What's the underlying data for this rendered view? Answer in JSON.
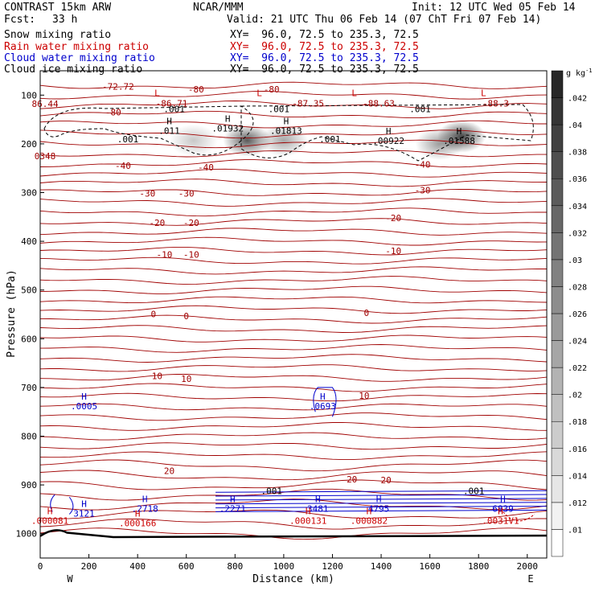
{
  "header": {
    "model": "CONTRAST 15km ARW",
    "org": "NCAR/MMM",
    "init": "Init: 12 UTC Wed 05 Feb 14",
    "fcst_label": "Fcst:",
    "fcst_value": "33 h",
    "valid": "Valid: 21 UTC Thu 06 Feb 14 (07 ChT Fri 07 Feb 14)"
  },
  "legend": [
    {
      "name": "Snow mixing ratio",
      "xy": "XY=  96.0, 72.5 to 235.3, 72.5",
      "color": "#000000"
    },
    {
      "name": "Rain water mixing ratio",
      "xy": "XY=  96.0, 72.5 to 235.3, 72.5",
      "color": "#cc0000"
    },
    {
      "name": "Cloud water mixing ratio",
      "xy": "XY=  96.0, 72.5 to 235.3, 72.5",
      "color": "#0000cc"
    },
    {
      "name": "Cloud ice mixing ratio",
      "xy": "XY=  96.0, 72.5 to 235.3, 72.5",
      "color": "#000000"
    }
  ],
  "chart_data": {
    "type": "contour",
    "xlabel": "Distance (km)",
    "ylabel": "Pressure (hPa)",
    "xlim": [
      0,
      2080
    ],
    "ylim": [
      1050,
      50
    ],
    "x_ticks": [
      0,
      200,
      400,
      600,
      800,
      1000,
      1200,
      1400,
      1600,
      1800,
      2000
    ],
    "y_ticks": [
      100,
      200,
      300,
      400,
      500,
      600,
      700,
      800,
      900,
      1000
    ],
    "x_end_labels": {
      "left": "W",
      "right": "E"
    },
    "colorbar": {
      "unit": "g kg",
      "unit_exp": "-1",
      "ticks": [
        ".01",
        ".012",
        ".014",
        ".016",
        ".018",
        ".02",
        ".022",
        ".024",
        ".026",
        ".028",
        ".03",
        ".032",
        ".034",
        ".036",
        ".038",
        ".04",
        ".042"
      ]
    },
    "isotherm_labels": [
      {
        "text": "-72.72",
        "x": 320,
        "p": 82
      },
      {
        "text": "86.44",
        "x": 20,
        "p": 118
      },
      {
        "text": "-80",
        "x": 300,
        "p": 135
      },
      {
        "text": "-80",
        "x": 640,
        "p": 88
      },
      {
        "text": "-80",
        "x": 950,
        "p": 88
      },
      {
        "text": "-86.71",
        "x": 540,
        "p": 117
      },
      {
        "text": "-87.35",
        "x": 1100,
        "p": 117
      },
      {
        "text": "-88.63",
        "x": 1390,
        "p": 117
      },
      {
        "text": "-88.3",
        "x": 1870,
        "p": 117
      },
      {
        "text": "0348",
        "x": 20,
        "p": 225
      },
      {
        "text": "-40",
        "x": 340,
        "p": 245
      },
      {
        "text": "-40",
        "x": 680,
        "p": 248
      },
      {
        "text": "-40",
        "x": 1570,
        "p": 242
      },
      {
        "text": "-30",
        "x": 440,
        "p": 302
      },
      {
        "text": "-30",
        "x": 600,
        "p": 302
      },
      {
        "text": "-30",
        "x": 1570,
        "p": 295
      },
      {
        "text": "-20",
        "x": 480,
        "p": 362
      },
      {
        "text": "-20",
        "x": 620,
        "p": 362
      },
      {
        "text": "-20",
        "x": 1450,
        "p": 352
      },
      {
        "text": "-10",
        "x": 510,
        "p": 427
      },
      {
        "text": "-10",
        "x": 620,
        "p": 427
      },
      {
        "text": "-10",
        "x": 1450,
        "p": 420
      },
      {
        "text": "0",
        "x": 465,
        "p": 549
      },
      {
        "text": "0",
        "x": 600,
        "p": 553
      },
      {
        "text": "0",
        "x": 1340,
        "p": 547
      },
      {
        "text": "10",
        "x": 480,
        "p": 676
      },
      {
        "text": "10",
        "x": 600,
        "p": 682
      },
      {
        "text": "10",
        "x": 1330,
        "p": 717
      },
      {
        "text": "20",
        "x": 530,
        "p": 871
      },
      {
        "text": "20",
        "x": 1280,
        "p": 888
      },
      {
        "text": "20",
        "x": 1420,
        "p": 890
      }
    ],
    "highs_lows": [
      {
        "mark": "L",
        "x": 480,
        "p": 102,
        "color": "#cc0000"
      },
      {
        "mark": "L",
        "x": 900,
        "p": 102,
        "color": "#cc0000"
      },
      {
        "mark": "L",
        "x": 1290,
        "p": 102,
        "color": "#cc0000"
      },
      {
        "mark": "L",
        "x": 1820,
        "p": 102,
        "color": "#cc0000"
      },
      {
        "mark": "H",
        "x": 530,
        "p": 160,
        "color": "#000000",
        "value": ".011"
      },
      {
        "mark": "H",
        "x": 770,
        "p": 155,
        "color": "#000000",
        "value": ".01932"
      },
      {
        "mark": "H",
        "x": 1010,
        "p": 160,
        "color": "#000000",
        "value": ".01813"
      },
      {
        "mark": "H",
        "x": 1430,
        "p": 180,
        "color": "#000000",
        "value": ".00922"
      },
      {
        "mark": "H",
        "x": 1720,
        "p": 180,
        "color": "#000000",
        "value": ".01588"
      },
      {
        "mark": "H",
        "x": 180,
        "p": 725,
        "color": "#0000cc",
        "value": ".0005"
      },
      {
        "mark": "H",
        "x": 1160,
        "p": 725,
        "color": "#0000cc",
        "value": ".0693"
      },
      {
        "mark": "H",
        "x": 180,
        "p": 945,
        "color": "#0000cc",
        "value": "3121"
      },
      {
        "mark": "H",
        "x": 430,
        "p": 935,
        "color": "#0000cc",
        "value": ".2718"
      },
      {
        "mark": "H",
        "x": 790,
        "p": 935,
        "color": "#0000cc",
        "value": ".2271"
      },
      {
        "mark": "H",
        "x": 1140,
        "p": 935,
        "color": "#0000cc",
        "value": "3481"
      },
      {
        "mark": "H",
        "x": 1390,
        "p": 935,
        "color": "#0000cc",
        "value": "4795"
      },
      {
        "mark": "H",
        "x": 1900,
        "p": 935,
        "color": "#0000cc",
        "value": "6839"
      },
      {
        "mark": "H",
        "x": 40,
        "p": 960,
        "color": "#cc0000",
        "value": ".000081"
      },
      {
        "mark": "H",
        "x": 400,
        "p": 965,
        "color": "#cc0000",
        "value": ".000166"
      },
      {
        "mark": "H",
        "x": 1100,
        "p": 960,
        "color": "#cc0000",
        "value": ".000131"
      },
      {
        "mark": "H",
        "x": 1350,
        "p": 960,
        "color": "#cc0000",
        "value": ".000882"
      },
      {
        "mark": "H",
        "x": 1890,
        "p": 960,
        "color": "#cc0000",
        "value": ".0031V1"
      }
    ],
    "ice_labels": [
      {
        "text": ".001",
        "x": 550,
        "p": 128
      },
      {
        "text": ".001",
        "x": 980,
        "p": 128
      },
      {
        "text": ".001",
        "x": 1560,
        "p": 128
      },
      {
        "text": ".001",
        "x": 360,
        "p": 190
      },
      {
        "text": ".001",
        "x": 1190,
        "p": 190
      },
      {
        "text": ".001",
        "x": 950,
        "p": 912
      },
      {
        "text": ".001",
        "x": 1780,
        "p": 912
      }
    ],
    "snow_blobs": [
      {
        "x": 850,
        "p": 193,
        "intensity": 0.75
      },
      {
        "x": 1000,
        "p": 193,
        "intensity": 0.4
      },
      {
        "x": 630,
        "p": 193,
        "intensity": 0.25
      },
      {
        "x": 1730,
        "p": 185,
        "intensity": 0.85
      },
      {
        "x": 1640,
        "p": 200,
        "intensity": 0.45
      }
    ]
  }
}
